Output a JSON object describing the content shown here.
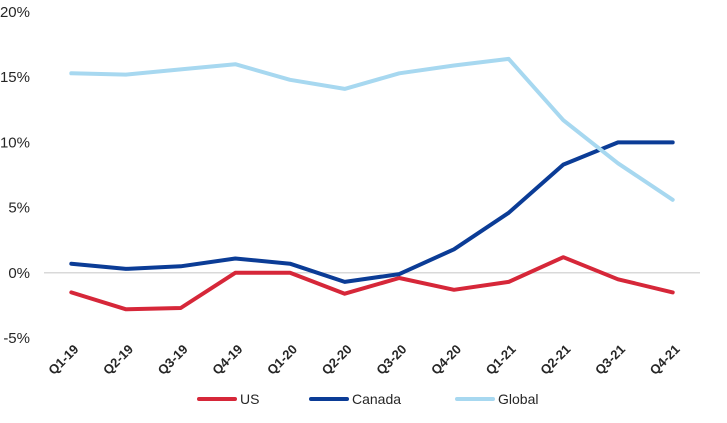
{
  "chart_data": {
    "type": "line",
    "categories": [
      "Q1-19",
      "Q2-19",
      "Q3-19",
      "Q4-19",
      "Q1-20",
      "Q2-20",
      "Q3-20",
      "Q4-20",
      "Q1-21",
      "Q2-21",
      "Q3-21",
      "Q4-21"
    ],
    "y_ticks": [
      "20%",
      "15%",
      "10%",
      "5%",
      "0%",
      "-5%"
    ],
    "ylim": [
      -5,
      20
    ],
    "grid": false,
    "legend_position": "bottom",
    "series": [
      {
        "name": "US",
        "color": "#d62739",
        "values": [
          -1.5,
          -2.8,
          -2.7,
          0.0,
          0.0,
          -1.6,
          -0.4,
          -1.3,
          -0.7,
          1.2,
          -0.5,
          -1.5
        ]
      },
      {
        "name": "Canada",
        "color": "#0b3c96",
        "values": [
          0.7,
          0.3,
          0.5,
          1.1,
          0.7,
          -0.7,
          -0.1,
          1.8,
          4.6,
          8.3,
          10.0,
          10.0
        ]
      },
      {
        "name": "Global",
        "color": "#a7d8f0",
        "values": [
          15.3,
          15.2,
          15.6,
          16.0,
          14.8,
          14.1,
          15.3,
          15.9,
          16.4,
          11.7,
          8.4,
          5.6
        ]
      }
    ]
  }
}
